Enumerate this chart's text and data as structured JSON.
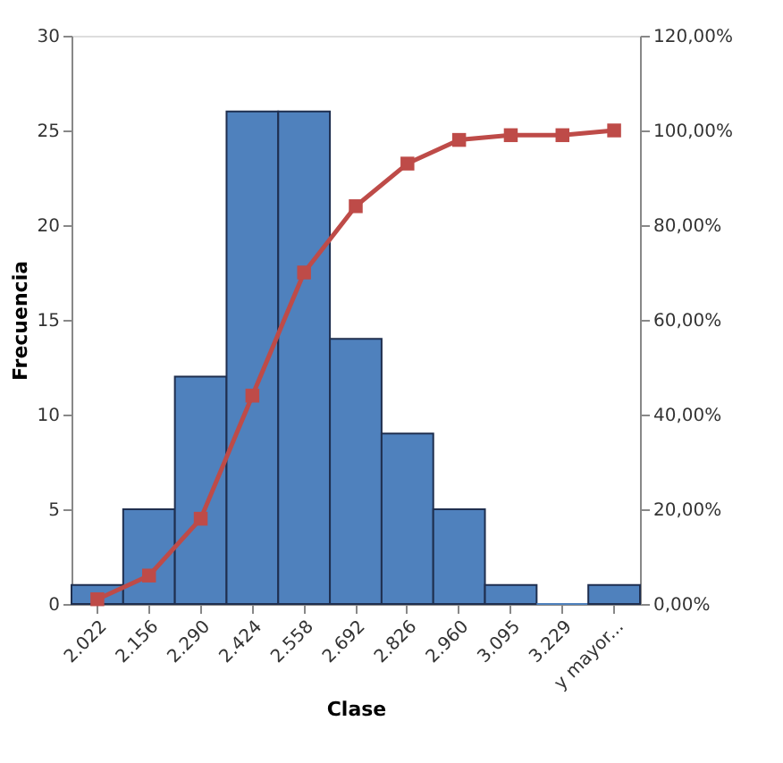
{
  "chart_data": {
    "type": "bar",
    "xlabel": "Clase",
    "ylabel": "Frecuencia",
    "categories": [
      "2.022",
      "2.156",
      "2.290",
      "2.424",
      "2.558",
      "2.692",
      "2.826",
      "2.960",
      "3.095",
      "3.229",
      "y mayor..."
    ],
    "series": [
      {
        "color": "#4f81bd",
        "values": [
          1,
          5,
          12,
          26,
          26,
          14,
          9,
          5,
          1,
          0,
          1
        ]
      },
      {
        "type": "line",
        "axis": "y2",
        "color": "#be4b48",
        "marker": "square",
        "values": [
          1,
          6,
          18,
          44,
          70,
          84,
          93,
          98,
          99,
          99,
          100
        ]
      }
    ],
    "ylim": [
      0,
      30
    ],
    "yticks": [
      0,
      5,
      10,
      15,
      20,
      25,
      30
    ],
    "y2lim": [
      0,
      120
    ],
    "y2ticks": [
      {
        "value": 0,
        "label": "0,00%"
      },
      {
        "value": 20,
        "label": "20,00%"
      },
      {
        "value": 40,
        "label": "40,00%"
      },
      {
        "value": 60,
        "label": "60,00%"
      },
      {
        "value": 80,
        "label": "80,00%"
      },
      {
        "value": 100,
        "label": "100,00%"
      },
      {
        "value": 120,
        "label": "120,00%"
      }
    ],
    "grid": false
  }
}
